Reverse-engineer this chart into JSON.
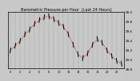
{
  "title": "Barometric Pressure per Hour  (Last 24 Hours)",
  "bg_color": "#c8c8c8",
  "plot_bg": "#c8c8c8",
  "border_color": "#000000",
  "line_color": "#cc0000",
  "tick_color": "#000000",
  "grid_color": "#888888",
  "hours": [
    0,
    1,
    2,
    3,
    4,
    5,
    6,
    7,
    8,
    9,
    10,
    11,
    12,
    13,
    14,
    15,
    16,
    17,
    18,
    19,
    20,
    21,
    22,
    23
  ],
  "pressure": [
    29.18,
    29.28,
    29.38,
    29.52,
    29.62,
    29.74,
    29.82,
    29.88,
    29.9,
    29.84,
    29.76,
    29.68,
    29.52,
    29.3,
    29.1,
    29.02,
    29.12,
    29.3,
    29.42,
    29.34,
    29.18,
    29.06,
    28.96,
    28.9
  ],
  "trend": [
    1,
    1,
    1,
    1,
    1,
    1,
    1,
    1,
    -1,
    -1,
    -1,
    -1,
    -1,
    -1,
    -1,
    1,
    1,
    1,
    -1,
    -1,
    -1,
    -1,
    -1,
    -1
  ],
  "ylim_min": 28.8,
  "ylim_max": 30.0,
  "ytick_step": 0.2,
  "yticks": [
    28.8,
    29.0,
    29.2,
    29.4,
    29.6,
    29.8,
    30.0
  ],
  "title_fontsize": 3.5,
  "label_fontsize": 3.0,
  "xtick_fontsize": 2.5,
  "ytick_fontsize": 3.0
}
